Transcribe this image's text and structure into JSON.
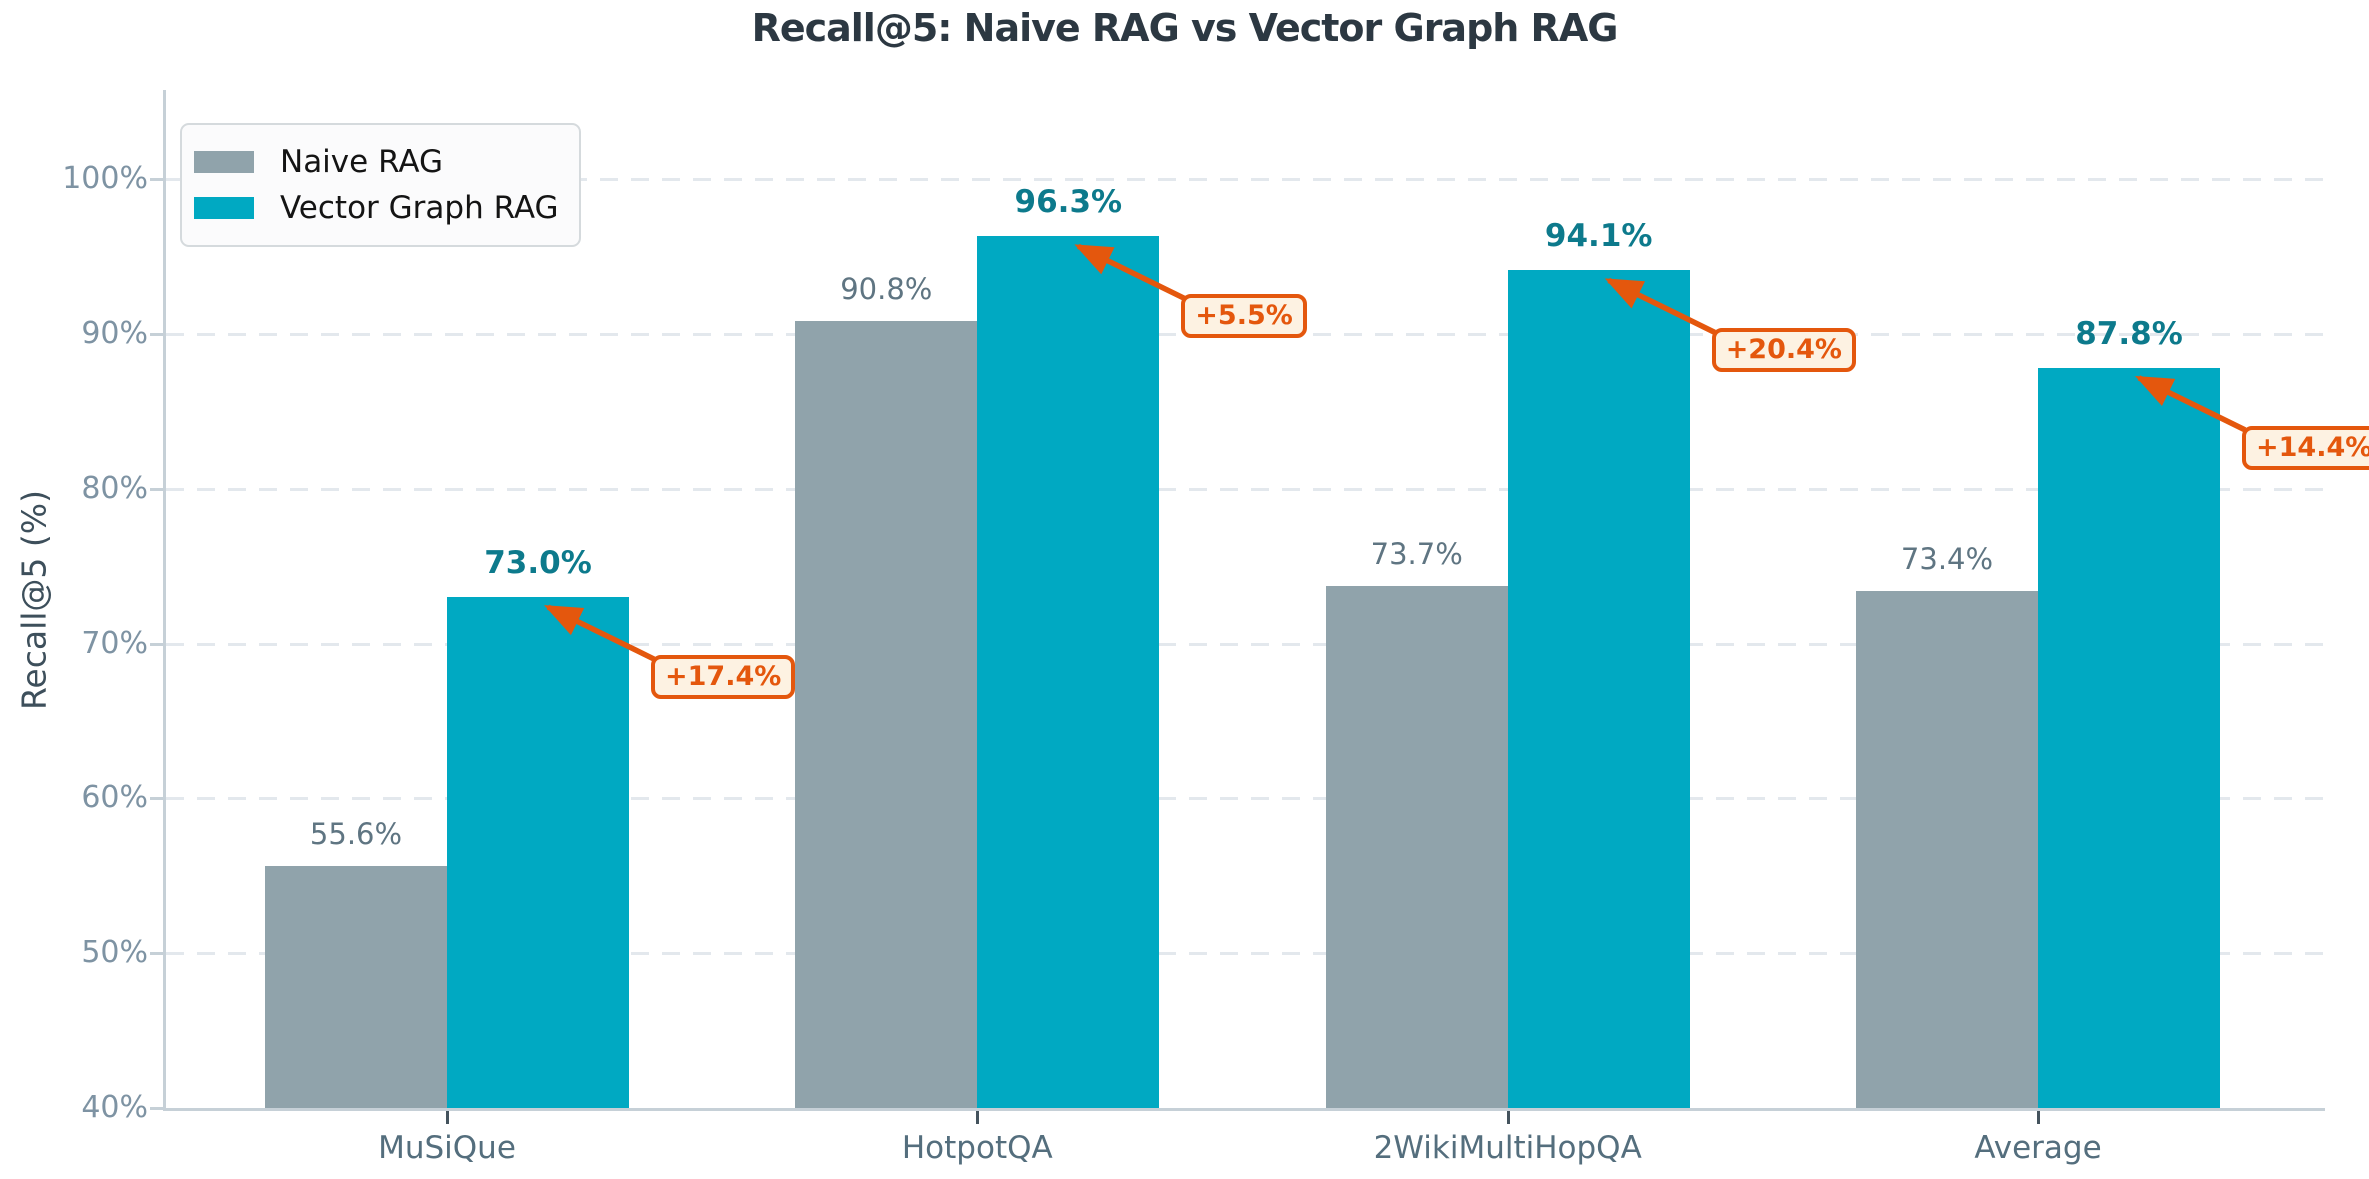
{
  "title": "Recall@5: Naive RAG vs Vector Graph RAG",
  "chart_data": {
    "type": "bar",
    "title": "Recall@5: Naive RAG vs Vector Graph RAG",
    "xlabel": "",
    "ylabel": "Recall@5 (%)",
    "categories": [
      "MuSiQue",
      "HotpotQA",
      "2WikiMultiHopQA",
      "Average"
    ],
    "series": [
      {
        "name": "Naive RAG",
        "color": "#90a3ab",
        "values": [
          55.6,
          90.8,
          73.7,
          73.4
        ],
        "value_labels": [
          "55.6%",
          "90.8%",
          "73.7%",
          "73.4%"
        ]
      },
      {
        "name": "Vector Graph RAG",
        "color": "#00a9c2",
        "values": [
          73.0,
          96.3,
          94.1,
          87.8
        ],
        "value_labels": [
          "73.0%",
          "96.3%",
          "94.1%",
          "87.8%"
        ]
      }
    ],
    "improvement_annotations": [
      "+17.4%",
      "+5.5%",
      "+20.4%",
      "+14.4%"
    ],
    "y_ticks": [
      {
        "value": 40,
        "label": "40%"
      },
      {
        "value": 50,
        "label": "50%"
      },
      {
        "value": 60,
        "label": "60%"
      },
      {
        "value": 70,
        "label": "70%"
      },
      {
        "value": 80,
        "label": "80%"
      },
      {
        "value": 90,
        "label": "90%"
      },
      {
        "value": 100,
        "label": "100%"
      }
    ],
    "ylim": [
      40,
      106
    ],
    "grid": "horizontal-dashed",
    "legend_position": "upper-left"
  },
  "colors": {
    "naive_bar": "#90a3ab",
    "graph_bar": "#00a9c2",
    "naive_value_label": "#5f7582",
    "graph_value_label": "#0d7a8c",
    "annotation_accent": "#e4570d",
    "annotation_background": "#fdf2e2",
    "title_text": "#2c3842",
    "y_tick_text": "#7e93a3",
    "x_tick_text": "#546e7d",
    "grid_line": "#e3e8ed",
    "spine": "#c6d0d7"
  },
  "legend": {
    "items": [
      {
        "label": "Naive RAG",
        "swatch_color": "#90a3ab"
      },
      {
        "label": "Vector Graph RAG",
        "swatch_color": "#00a9c2"
      }
    ]
  }
}
